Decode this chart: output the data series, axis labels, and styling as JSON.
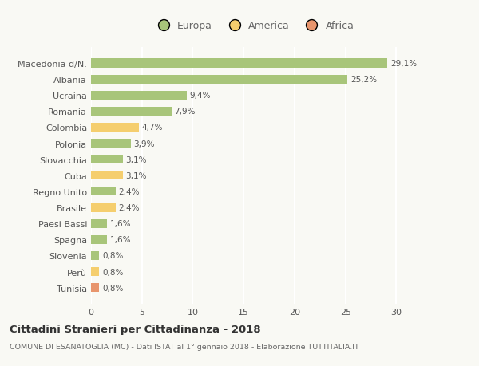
{
  "categories": [
    "Tunisia",
    "Perù",
    "Slovenia",
    "Spagna",
    "Paesi Bassi",
    "Brasile",
    "Regno Unito",
    "Cuba",
    "Slovacchia",
    "Polonia",
    "Colombia",
    "Romania",
    "Ucraina",
    "Albania",
    "Macedonia d/N."
  ],
  "values": [
    0.8,
    0.8,
    0.8,
    1.6,
    1.6,
    2.4,
    2.4,
    3.1,
    3.1,
    3.9,
    4.7,
    7.9,
    9.4,
    25.2,
    29.1
  ],
  "labels": [
    "0,8%",
    "0,8%",
    "0,8%",
    "1,6%",
    "1,6%",
    "2,4%",
    "2,4%",
    "3,1%",
    "3,1%",
    "3,9%",
    "4,7%",
    "7,9%",
    "9,4%",
    "25,2%",
    "29,1%"
  ],
  "continents": [
    "Africa",
    "America",
    "Europa",
    "Europa",
    "Europa",
    "America",
    "Europa",
    "America",
    "Europa",
    "Europa",
    "America",
    "Europa",
    "Europa",
    "Europa",
    "Europa"
  ],
  "colors": {
    "Europa": "#a8c57a",
    "America": "#f5ce6e",
    "Africa": "#e8956d"
  },
  "legend_labels": [
    "Europa",
    "America",
    "Africa"
  ],
  "legend_colors": [
    "#a8c57a",
    "#f5ce6e",
    "#e8956d"
  ],
  "title": "Cittadini Stranieri per Cittadinanza - 2018",
  "subtitle": "COMUNE DI ESANATOGLIA (MC) - Dati ISTAT al 1° gennaio 2018 - Elaborazione TUTTITALIA.IT",
  "xlim": [
    0,
    32
  ],
  "xticks": [
    0,
    5,
    10,
    15,
    20,
    25,
    30
  ],
  "bg_color": "#f9f9f4",
  "plot_bg_color": "#f9f9f4",
  "grid_color": "#ffffff",
  "bar_height": 0.55
}
